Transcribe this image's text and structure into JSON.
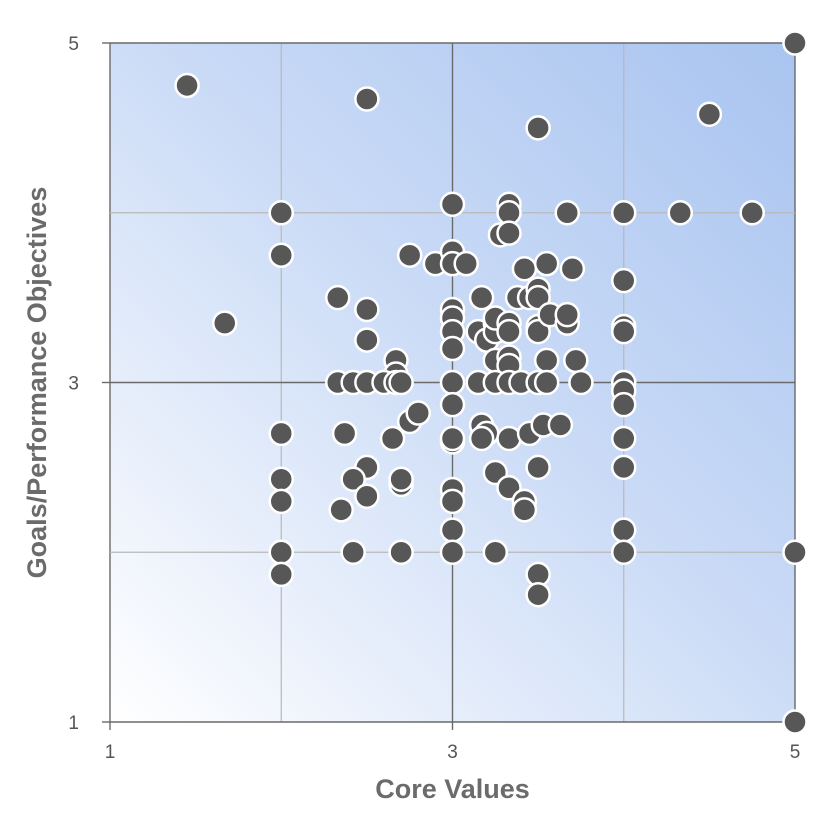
{
  "chart_data": {
    "type": "scatter",
    "xlabel": "Core Values",
    "ylabel": "Goals/Performance Objectives",
    "xlim": [
      1,
      5
    ],
    "ylim": [
      1,
      5
    ],
    "x_ticks": [
      "1",
      "3",
      "5"
    ],
    "y_ticks": [
      "1",
      "3",
      "5"
    ],
    "grid": true,
    "colors": {
      "point_fill": "#575757",
      "point_stroke": "#ffffff",
      "gradient_light": "#ffffff",
      "gradient_dark": "#a9c4f0"
    },
    "points": [
      [
        1.45,
        4.75
      ],
      [
        2.5,
        4.67
      ],
      [
        3.5,
        4.5
      ],
      [
        4.5,
        4.58
      ],
      [
        5.0,
        5.0
      ],
      [
        2.0,
        4.0
      ],
      [
        3.0,
        4.05
      ],
      [
        3.33,
        4.05
      ],
      [
        3.33,
        4.0
      ],
      [
        3.67,
        4.0
      ],
      [
        4.0,
        4.0
      ],
      [
        4.33,
        4.0
      ],
      [
        4.75,
        4.0
      ],
      [
        2.0,
        3.75
      ],
      [
        2.75,
        3.75
      ],
      [
        2.9,
        3.7
      ],
      [
        3.0,
        3.77
      ],
      [
        3.0,
        3.7
      ],
      [
        3.08,
        3.7
      ],
      [
        3.28,
        3.87
      ],
      [
        3.33,
        3.88
      ],
      [
        3.42,
        3.67
      ],
      [
        3.55,
        3.7
      ],
      [
        3.7,
        3.67
      ],
      [
        4.0,
        3.6
      ],
      [
        2.33,
        3.5
      ],
      [
        2.5,
        3.43
      ],
      [
        1.67,
        3.35
      ],
      [
        2.5,
        3.25
      ],
      [
        3.0,
        3.43
      ],
      [
        3.0,
        3.38
      ],
      [
        3.0,
        3.3
      ],
      [
        3.0,
        3.2
      ],
      [
        3.17,
        3.5
      ],
      [
        3.15,
        3.3
      ],
      [
        3.2,
        3.25
      ],
      [
        3.25,
        3.35
      ],
      [
        3.25,
        3.3
      ],
      [
        3.25,
        3.38
      ],
      [
        3.33,
        3.35
      ],
      [
        3.33,
        3.3
      ],
      [
        3.38,
        3.5
      ],
      [
        3.45,
        3.5
      ],
      [
        3.5,
        3.55
      ],
      [
        3.5,
        3.5
      ],
      [
        3.5,
        3.33
      ],
      [
        3.5,
        3.3
      ],
      [
        3.57,
        3.4
      ],
      [
        3.67,
        3.35
      ],
      [
        3.67,
        3.4
      ],
      [
        4.0,
        3.33
      ],
      [
        4.0,
        3.3
      ],
      [
        2.67,
        3.13
      ],
      [
        2.67,
        3.05
      ],
      [
        3.25,
        3.13
      ],
      [
        3.33,
        3.15
      ],
      [
        3.33,
        3.1
      ],
      [
        3.55,
        3.13
      ],
      [
        3.72,
        3.13
      ],
      [
        2.33,
        3.0
      ],
      [
        2.42,
        3.0
      ],
      [
        2.5,
        3.0
      ],
      [
        2.6,
        3.0
      ],
      [
        2.67,
        3.0
      ],
      [
        2.7,
        3.0
      ],
      [
        3.0,
        3.0
      ],
      [
        3.15,
        3.0
      ],
      [
        3.25,
        3.0
      ],
      [
        3.33,
        3.0
      ],
      [
        3.4,
        3.0
      ],
      [
        3.5,
        3.0
      ],
      [
        3.55,
        3.0
      ],
      [
        3.75,
        3.0
      ],
      [
        4.0,
        3.0
      ],
      [
        4.0,
        2.95
      ],
      [
        4.0,
        2.87
      ],
      [
        3.0,
        2.87
      ],
      [
        2.75,
        2.77
      ],
      [
        2.8,
        2.82
      ],
      [
        2.65,
        2.67
      ],
      [
        2.0,
        2.7
      ],
      [
        2.37,
        2.7
      ],
      [
        3.0,
        2.65
      ],
      [
        3.0,
        2.67
      ],
      [
        3.17,
        2.75
      ],
      [
        3.2,
        2.7
      ],
      [
        3.17,
        2.67
      ],
      [
        3.33,
        2.67
      ],
      [
        3.45,
        2.7
      ],
      [
        3.53,
        2.75
      ],
      [
        3.63,
        2.75
      ],
      [
        4.0,
        2.67
      ],
      [
        2.5,
        2.5
      ],
      [
        2.42,
        2.43
      ],
      [
        2.5,
        2.33
      ],
      [
        2.35,
        2.25
      ],
      [
        2.0,
        2.43
      ],
      [
        2.0,
        2.3
      ],
      [
        2.7,
        2.4
      ],
      [
        2.7,
        2.43
      ],
      [
        3.0,
        2.37
      ],
      [
        3.0,
        2.3
      ],
      [
        3.25,
        2.47
      ],
      [
        3.33,
        2.38
      ],
      [
        3.42,
        2.3
      ],
      [
        3.42,
        2.25
      ],
      [
        3.5,
        2.5
      ],
      [
        4.0,
        2.5
      ],
      [
        3.0,
        2.13
      ],
      [
        4.0,
        2.13
      ],
      [
        2.0,
        2.0
      ],
      [
        2.42,
        2.0
      ],
      [
        2.7,
        2.0
      ],
      [
        3.0,
        2.0
      ],
      [
        3.25,
        2.0
      ],
      [
        4.0,
        2.0
      ],
      [
        5.0,
        2.0
      ],
      [
        2.0,
        1.87
      ],
      [
        3.5,
        1.87
      ],
      [
        3.5,
        1.75
      ],
      [
        5.0,
        1.0
      ]
    ]
  }
}
